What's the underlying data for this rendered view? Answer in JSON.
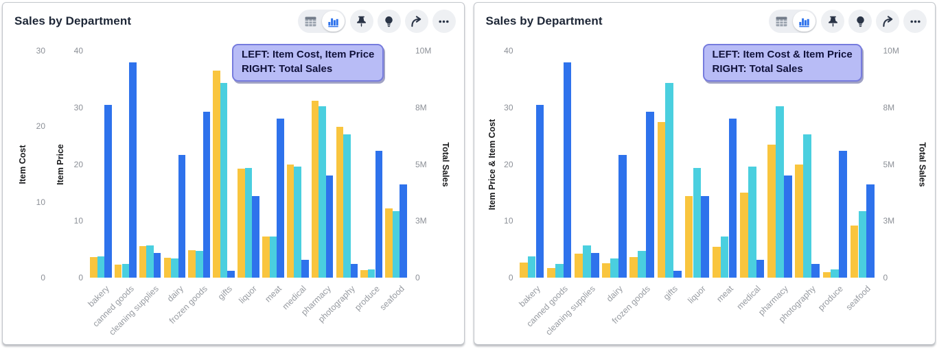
{
  "cards": [
    {
      "title": "Sales by Department",
      "toolbar": {
        "view_toggle": [
          {
            "icon": "table-icon",
            "selected": false
          },
          {
            "icon": "bar-chart-icon",
            "selected": true
          }
        ],
        "buttons": [
          {
            "icon": "pin-icon"
          },
          {
            "icon": "lightbulb-icon"
          },
          {
            "icon": "share-arrow-icon"
          },
          {
            "icon": "ellipsis-icon"
          }
        ]
      }
    },
    {
      "title": "Sales by Department",
      "toolbar": {
        "view_toggle": [
          {
            "icon": "table-icon",
            "selected": false
          },
          {
            "icon": "bar-chart-icon",
            "selected": true
          }
        ],
        "buttons": [
          {
            "icon": "pin-icon"
          },
          {
            "icon": "lightbulb-icon"
          },
          {
            "icon": "share-arrow-icon"
          },
          {
            "icon": "ellipsis-icon"
          }
        ]
      }
    }
  ],
  "colors": {
    "bar_blue": "#2e72ec",
    "bar_yellow": "#f9c53e",
    "bar_cyan": "#4acfdf",
    "annotation_bg": "#b8bcf6",
    "annotation_border": "#767bdd",
    "icon_dark": "#2a3446",
    "toolbar_bg": "#eceef2",
    "tick_gray": "#8b8f96"
  },
  "chart_data": [
    {
      "type": "bar",
      "title": "Sales by Department",
      "grid": false,
      "legend": "none",
      "annotation_lines": [
        "LEFT: Item Cost, Item Price",
        "RIGHT: Total Sales"
      ],
      "categories": [
        "bakery",
        "canned goods",
        "cleaning supplies",
        "dairy",
        "frozen goods",
        "gifts",
        "liquor",
        "meat",
        "medical",
        "pharmacy",
        "photography",
        "produce",
        "seafood"
      ],
      "left_axes": [
        {
          "label": "Item Cost",
          "range": [
            0,
            30
          ],
          "ticks": [
            "0",
            "10",
            "20",
            "30"
          ]
        },
        {
          "label": "Item Price",
          "range": [
            0,
            40
          ],
          "ticks": [
            "0",
            "10",
            "20",
            "30",
            "40"
          ]
        }
      ],
      "right_axis": {
        "label": "Total Sales",
        "unit": "M",
        "range": [
          0,
          10
        ],
        "ticks": [
          "0",
          "3M",
          "5M",
          "8M",
          "10M"
        ],
        "tick_values": [
          0,
          2.5,
          5,
          7.5,
          10
        ]
      },
      "series": [
        {
          "name": "Item Cost",
          "color": "#f9c53e",
          "axis": "left-0",
          "values": [
            2.7,
            1.7,
            4.2,
            2.6,
            3.6,
            27.4,
            14.4,
            5.4,
            15.0,
            23.4,
            19.9,
            1.0,
            9.2
          ]
        },
        {
          "name": "Item Price",
          "color": "#4acfdf",
          "axis": "left-1",
          "values": [
            3.7,
            2.4,
            5.7,
            3.4,
            4.7,
            34.3,
            19.4,
            7.3,
            19.6,
            30.2,
            25.3,
            1.4,
            11.7
          ]
        },
        {
          "name": "Total Sales",
          "color": "#2e72ec",
          "axis": "right",
          "unit": "M",
          "values": [
            7.6,
            9.5,
            1.1,
            5.4,
            7.3,
            0.3,
            3.6,
            7.0,
            0.8,
            4.5,
            0.6,
            5.6,
            4.1
          ]
        }
      ]
    },
    {
      "type": "bar",
      "title": "Sales by Department",
      "grid": false,
      "legend": "none",
      "annotation_lines": [
        "LEFT: Item Cost & Item Price",
        "RIGHT: Total Sales"
      ],
      "categories": [
        "bakery",
        "canned goods",
        "cleaning supplies",
        "dairy",
        "frozen goods",
        "gifts",
        "liquor",
        "meat",
        "medical",
        "pharmacy",
        "photography",
        "produce",
        "seafood"
      ],
      "left_axes": [
        {
          "label": "Item Price & Item Cost",
          "range": [
            0,
            40
          ],
          "ticks": [
            "0",
            "10",
            "20",
            "30",
            "40"
          ]
        }
      ],
      "right_axis": {
        "label": "Total Sales",
        "unit": "M",
        "range": [
          0,
          10
        ],
        "ticks": [
          "0",
          "3M",
          "5M",
          "8M",
          "10M"
        ],
        "tick_values": [
          0,
          2.5,
          5,
          7.5,
          10
        ]
      },
      "series": [
        {
          "name": "Item Cost",
          "color": "#f9c53e",
          "axis": "left-0",
          "values": [
            2.7,
            1.7,
            4.2,
            2.6,
            3.6,
            27.4,
            14.4,
            5.4,
            15.0,
            23.4,
            19.9,
            1.0,
            9.2
          ]
        },
        {
          "name": "Item Price",
          "color": "#4acfdf",
          "axis": "left-0",
          "values": [
            3.7,
            2.4,
            5.7,
            3.4,
            4.7,
            34.3,
            19.4,
            7.3,
            19.6,
            30.2,
            25.3,
            1.4,
            11.7
          ]
        },
        {
          "name": "Total Sales",
          "color": "#2e72ec",
          "axis": "right",
          "unit": "M",
          "values": [
            7.6,
            9.5,
            1.1,
            5.4,
            7.3,
            0.3,
            3.6,
            7.0,
            0.8,
            4.5,
            0.6,
            5.6,
            4.1
          ]
        }
      ]
    }
  ]
}
